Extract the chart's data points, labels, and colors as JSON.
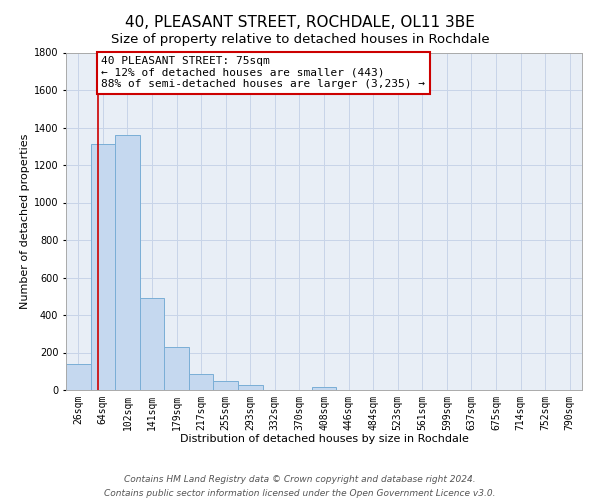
{
  "title": "40, PLEASANT STREET, ROCHDALE, OL11 3BE",
  "subtitle": "Size of property relative to detached houses in Rochdale",
  "xlabel": "Distribution of detached houses by size in Rochdale",
  "ylabel": "Number of detached properties",
  "bar_labels": [
    "26sqm",
    "64sqm",
    "102sqm",
    "141sqm",
    "179sqm",
    "217sqm",
    "255sqm",
    "293sqm",
    "332sqm",
    "370sqm",
    "408sqm",
    "446sqm",
    "484sqm",
    "523sqm",
    "561sqm",
    "599sqm",
    "637sqm",
    "675sqm",
    "714sqm",
    "752sqm",
    "790sqm"
  ],
  "bar_values": [
    140,
    1310,
    1360,
    490,
    230,
    85,
    50,
    28,
    0,
    0,
    15,
    0,
    0,
    0,
    0,
    0,
    0,
    0,
    0,
    0,
    0
  ],
  "bar_color": "#c5d8ef",
  "bar_edge_color": "#7aaed6",
  "annotation_line1": "40 PLEASANT STREET: 75sqm",
  "annotation_line2": "← 12% of detached houses are smaller (443)",
  "annotation_line3": "88% of semi-detached houses are larger (3,235) →",
  "annotation_box_color": "#ffffff",
  "annotation_box_edge_color": "#cc0000",
  "property_line_color": "#cc0000",
  "ylim": [
    0,
    1800
  ],
  "yticks": [
    0,
    200,
    400,
    600,
    800,
    1000,
    1200,
    1400,
    1600,
    1800
  ],
  "footer_line1": "Contains HM Land Registry data © Crown copyright and database right 2024.",
  "footer_line2": "Contains public sector information licensed under the Open Government Licence v3.0.",
  "background_color": "#ffffff",
  "plot_bg_color": "#e8eef6",
  "grid_color": "#c8d4e8",
  "title_fontsize": 11,
  "subtitle_fontsize": 9.5,
  "axis_label_fontsize": 8,
  "tick_fontsize": 7,
  "annotation_fontsize": 8,
  "footer_fontsize": 6.5
}
